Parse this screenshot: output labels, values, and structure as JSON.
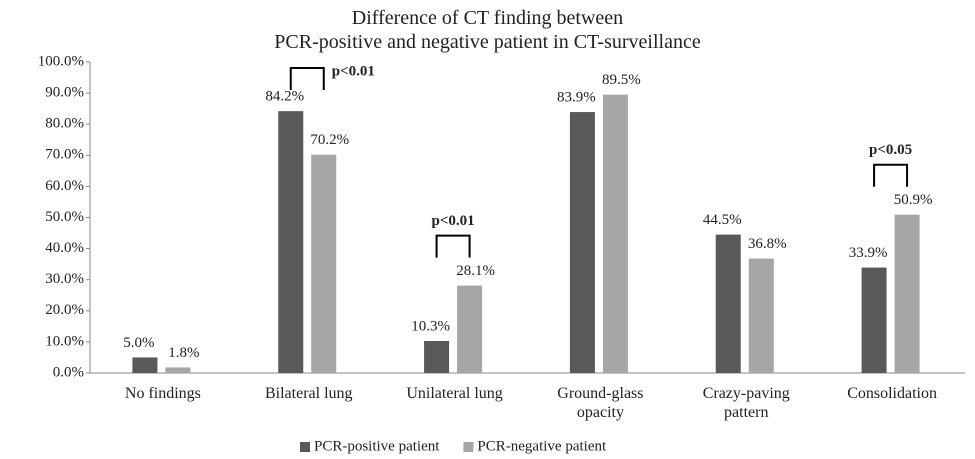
{
  "chart_data": {
    "type": "bar",
    "title": "Difference of CT finding between\nPCR-positive and negative patient in CT-surveillance",
    "categories": [
      "No findings",
      "Bilateral lung",
      "Unilateral lung",
      "Ground-glass\nopacity",
      "Crazy-paving\npattern",
      "Consolidation"
    ],
    "series": [
      {
        "name": "PCR-positive patient",
        "color": "#595959",
        "values": [
          5.0,
          84.2,
          10.3,
          83.9,
          44.5,
          33.9
        ],
        "value_labels": [
          "5.0%",
          "84.2%",
          "10.3%",
          "83.9%",
          "44.5%",
          "33.9%"
        ]
      },
      {
        "name": "PCR-negative patient",
        "color": "#a6a6a6",
        "values": [
          1.8,
          70.2,
          28.1,
          89.5,
          36.8,
          50.9
        ],
        "value_labels": [
          "1.8%",
          "70.2%",
          "28.1%",
          "89.5%",
          "36.8%",
          "50.9%"
        ]
      }
    ],
    "ylim": [
      0,
      100
    ],
    "yticks": [
      {
        "value": 0,
        "label": "0.0%"
      },
      {
        "value": 10,
        "label": "10.0%"
      },
      {
        "value": 20,
        "label": "20.0%"
      },
      {
        "value": 30,
        "label": "30.0%"
      },
      {
        "value": 40,
        "label": "40.0%"
      },
      {
        "value": 50,
        "label": "50.0%"
      },
      {
        "value": 60,
        "label": "60.0%"
      },
      {
        "value": 70,
        "label": "70.0%"
      },
      {
        "value": 80,
        "label": "80.0%"
      },
      {
        "value": 90,
        "label": "90.0%"
      },
      {
        "value": 100,
        "label": "100.0%"
      }
    ],
    "grid": false,
    "legend": "bottom",
    "annotations": [
      {
        "text": "p<0.01",
        "category": "Bilateral lung"
      },
      {
        "text": "p<0.01",
        "category": "Unilateral lung"
      },
      {
        "text": "p<0.05",
        "category": "Consolidation"
      }
    ]
  }
}
